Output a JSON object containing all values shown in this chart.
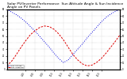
{
  "title": "Solar PV/Inverter Performance  Sun Altitude Angle & Sun Incidence Angle on PV Panels",
  "title_fontsize": 3.2,
  "blue_x": [
    0,
    1,
    2,
    3,
    4,
    5,
    6,
    7,
    8,
    9,
    10,
    11,
    12,
    13,
    14,
    15,
    16,
    17,
    18,
    19,
    20,
    21,
    22,
    23,
    24
  ],
  "blue_y": [
    90,
    86,
    82,
    77,
    71,
    64,
    57,
    49,
    41,
    33,
    24,
    16,
    10,
    14,
    22,
    30,
    38,
    47,
    55,
    63,
    71,
    78,
    83,
    87,
    90
  ],
  "red_x": [
    0,
    1,
    2,
    3,
    4,
    5,
    6,
    7,
    8,
    9,
    10,
    11,
    12,
    13,
    14,
    15,
    16,
    17,
    18,
    19,
    20,
    21,
    22,
    23,
    24
  ],
  "red_y": [
    5,
    12,
    22,
    33,
    43,
    52,
    58,
    63,
    65,
    64,
    60,
    53,
    44,
    33,
    22,
    14,
    8,
    5,
    6,
    10,
    16,
    24,
    33,
    42,
    52
  ],
  "xlim": [
    0,
    24
  ],
  "ylim": [
    0,
    90
  ],
  "xtick_labels": [
    "4:00",
    "6:00",
    "8:00",
    "10:0",
    "12:0",
    "14:0",
    "16:0",
    "18:0",
    "20:0"
  ],
  "xtick_vals": [
    4,
    6,
    8,
    10,
    12,
    14,
    16,
    18,
    20
  ],
  "ytick_vals": [
    0,
    10,
    20,
    30,
    40,
    50,
    60,
    70,
    80,
    90
  ],
  "legend_labels": [
    "Sun Altitude",
    "Sun Incidence"
  ],
  "blue_color": "#0000dd",
  "red_color": "#dd0000",
  "bg_color": "#ffffff",
  "grid_color": "#999999",
  "fig_width": 1.6,
  "fig_height": 1.0,
  "dpi": 100
}
